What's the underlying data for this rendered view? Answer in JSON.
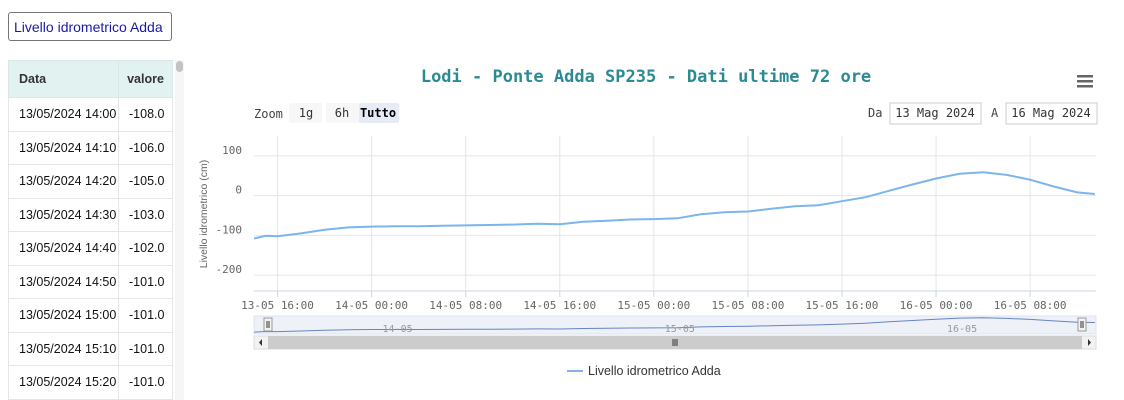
{
  "sensor_select": {
    "value": "Livello idrometrico Adda"
  },
  "table": {
    "headers": [
      "Data",
      "valore"
    ],
    "rows": [
      [
        "13/05/2024 14:00",
        "-108.0"
      ],
      [
        "13/05/2024 14:10",
        "-106.0"
      ],
      [
        "13/05/2024 14:20",
        "-105.0"
      ],
      [
        "13/05/2024 14:30",
        "-103.0"
      ],
      [
        "13/05/2024 14:40",
        "-102.0"
      ],
      [
        "13/05/2024 14:50",
        "-101.0"
      ],
      [
        "13/05/2024 15:00",
        "-101.0"
      ],
      [
        "13/05/2024 15:10",
        "-101.0"
      ],
      [
        "13/05/2024 15:20",
        "-101.0"
      ]
    ]
  },
  "chart_ui": {
    "zoom_label": "Zoom",
    "zoom_buttons": [
      "1g",
      "6h",
      "Tutto"
    ],
    "active_zoom": "Tutto",
    "from_label": "Da",
    "from_value": "13 Mag 2024",
    "to_label": "A",
    "to_value": "16 Mag 2024",
    "navigator_labels": [
      "14-05",
      "15-05",
      "16-05"
    ],
    "menu_icon": "hamburger-menu-icon"
  },
  "chart_data": {
    "type": "line",
    "title": "Lodi - Ponte Adda SP235 - Dati ultime 72 ore",
    "ylabel": "Livello idrometrico (cm)",
    "xlabel": "",
    "ylim": [
      -200,
      100
    ],
    "yticks": [
      100,
      0,
      -100,
      -200
    ],
    "x_ticks": [
      "13-05 16:00",
      "14-05 00:00",
      "14-05 08:00",
      "14-05 16:00",
      "15-05 00:00",
      "15-05 08:00",
      "15-05 16:00",
      "16-05 00:00",
      "16-05 08:00"
    ],
    "grid": true,
    "legend": "bottom-center",
    "color": "#7cb5ec",
    "series": [
      {
        "name": "Livello idrometrico Adda",
        "x": [
          "13-05 14:00",
          "13-05 15:00",
          "13-05 16:00",
          "13-05 18:00",
          "13-05 20:00",
          "13-05 22:00",
          "14-05 00:00",
          "14-05 02:00",
          "14-05 04:00",
          "14-05 06:00",
          "14-05 08:00",
          "14-05 10:00",
          "14-05 12:00",
          "14-05 14:00",
          "14-05 16:00",
          "14-05 18:00",
          "14-05 20:00",
          "14-05 22:00",
          "15-05 00:00",
          "15-05 02:00",
          "15-05 04:00",
          "15-05 06:00",
          "15-05 08:00",
          "15-05 10:00",
          "15-05 12:00",
          "15-05 14:00",
          "15-05 16:00",
          "15-05 18:00",
          "15-05 20:00",
          "15-05 22:00",
          "16-05 00:00",
          "16-05 02:00",
          "16-05 04:00",
          "16-05 06:00",
          "16-05 08:00",
          "16-05 10:00",
          "16-05 12:00",
          "16-05 13:30"
        ],
        "y": [
          -108,
          -101,
          -102,
          -95,
          -86,
          -80,
          -78,
          -77,
          -77,
          -76,
          -75,
          -74,
          -73,
          -71,
          -72,
          -66,
          -63,
          -60,
          -59,
          -57,
          -47,
          -42,
          -40,
          -33,
          -27,
          -24,
          -14,
          -4,
          12,
          28,
          43,
          55,
          59,
          52,
          40,
          23,
          8,
          4
        ]
      }
    ]
  }
}
